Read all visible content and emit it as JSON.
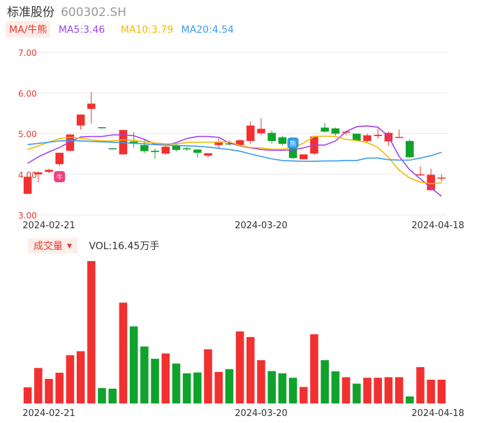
{
  "header": {
    "name": "标准股份",
    "code": "600302.SH"
  },
  "indicators": {
    "tag": "MA/牛熊",
    "ma5": "MA5:3.46",
    "ma10": "MA10:3.79",
    "ma20": "MA20:4.54"
  },
  "volume_panel": {
    "tag": "成交量",
    "label": "VOL:16.45万手"
  },
  "colors": {
    "up": "#f23030",
    "down": "#0fa32b",
    "ma5": "#a043e8",
    "ma10": "#f5b800",
    "ma20": "#3d9be8",
    "grid": "#e8e8e8",
    "axis_text": "#e8382d",
    "date_text": "#333333"
  },
  "chart_data": [
    {
      "type": "candlestick",
      "title": "",
      "ylim": [
        3.0,
        7.0
      ],
      "y_ticks": [
        "7.00",
        "6.00",
        "5.00",
        "4.00",
        "3.00"
      ],
      "x_ticks": [
        "2024-02-21",
        "2024-03-20",
        "2024-04-18"
      ],
      "grid": true,
      "markers": [
        {
          "label": "牛",
          "meaning": "bull marker",
          "index": 3
        },
        {
          "label": "熊",
          "meaning": "bear marker",
          "index": 25
        }
      ],
      "candles": [
        {
          "date": "2024-02-19",
          "open": 3.52,
          "high": 3.94,
          "low": 3.52,
          "close": 3.94
        },
        {
          "date": "2024-02-20",
          "open": 4.0,
          "high": 4.07,
          "low": 3.8,
          "close": 4.05
        },
        {
          "date": "2024-02-21",
          "open": 4.06,
          "high": 4.14,
          "low": 4.03,
          "close": 4.11
        },
        {
          "date": "2024-02-22",
          "open": 4.25,
          "high": 4.53,
          "low": 4.2,
          "close": 4.53
        },
        {
          "date": "2024-02-23",
          "open": 4.58,
          "high": 4.98,
          "low": 4.56,
          "close": 4.98
        },
        {
          "date": "2024-02-26",
          "open": 5.2,
          "high": 5.47,
          "low": 5.1,
          "close": 5.47
        },
        {
          "date": "2024-02-27",
          "open": 5.61,
          "high": 6.02,
          "low": 5.25,
          "close": 5.74
        },
        {
          "date": "2024-02-28",
          "open": 5.16,
          "high": 5.16,
          "low": 5.12,
          "close": 5.14
        },
        {
          "date": "2024-02-29",
          "open": 4.64,
          "high": 4.64,
          "low": 4.62,
          "close": 4.63
        },
        {
          "date": "2024-03-01",
          "open": 4.49,
          "high": 5.1,
          "low": 4.48,
          "close": 5.09
        },
        {
          "date": "2024-03-04",
          "open": 4.81,
          "high": 5.04,
          "low": 4.66,
          "close": 4.77
        },
        {
          "date": "2024-03-05",
          "open": 4.72,
          "high": 4.85,
          "low": 4.52,
          "close": 4.57
        },
        {
          "date": "2024-03-06",
          "open": 4.58,
          "high": 4.63,
          "low": 4.38,
          "close": 4.55
        },
        {
          "date": "2024-03-07",
          "open": 4.51,
          "high": 4.7,
          "low": 4.48,
          "close": 4.68
        },
        {
          "date": "2024-03-08",
          "open": 4.7,
          "high": 4.74,
          "low": 4.56,
          "close": 4.6
        },
        {
          "date": "2024-03-11",
          "open": 4.64,
          "high": 4.67,
          "low": 4.58,
          "close": 4.62
        },
        {
          "date": "2024-03-12",
          "open": 4.61,
          "high": 4.61,
          "low": 4.41,
          "close": 4.53
        },
        {
          "date": "2024-03-13",
          "open": 4.46,
          "high": 4.52,
          "low": 4.41,
          "close": 4.52
        },
        {
          "date": "2024-03-14",
          "open": 4.72,
          "high": 4.88,
          "low": 4.62,
          "close": 4.79
        },
        {
          "date": "2024-03-15",
          "open": 4.76,
          "high": 4.83,
          "low": 4.71,
          "close": 4.75
        },
        {
          "date": "2024-03-18",
          "open": 4.72,
          "high": 4.86,
          "low": 4.7,
          "close": 4.84
        },
        {
          "date": "2024-03-19",
          "open": 4.82,
          "high": 5.3,
          "low": 4.74,
          "close": 5.2
        },
        {
          "date": "2024-03-20",
          "open": 5.01,
          "high": 5.38,
          "low": 4.96,
          "close": 5.12
        },
        {
          "date": "2024-03-21",
          "open": 5.02,
          "high": 5.07,
          "low": 4.76,
          "close": 4.82
        },
        {
          "date": "2024-03-22",
          "open": 4.91,
          "high": 4.95,
          "low": 4.71,
          "close": 4.75
        },
        {
          "date": "2024-03-25",
          "open": 4.68,
          "high": 4.7,
          "low": 4.38,
          "close": 4.4
        },
        {
          "date": "2024-03-26",
          "open": 4.37,
          "high": 4.49,
          "low": 4.37,
          "close": 4.49
        },
        {
          "date": "2024-03-27",
          "open": 4.51,
          "high": 4.96,
          "low": 4.48,
          "close": 4.93
        },
        {
          "date": "2024-03-28",
          "open": 5.15,
          "high": 5.26,
          "low": 5.03,
          "close": 5.05
        },
        {
          "date": "2024-03-29",
          "open": 5.13,
          "high": 5.15,
          "low": 4.95,
          "close": 5.0
        },
        {
          "date": "2024-04-01",
          "open": 5.05,
          "high": 5.07,
          "low": 4.96,
          "close": 5.05
        },
        {
          "date": "2024-04-02",
          "open": 5.0,
          "high": 5.0,
          "low": 4.82,
          "close": 4.83
        },
        {
          "date": "2024-04-03",
          "open": 4.82,
          "high": 5.0,
          "low": 4.79,
          "close": 4.96
        },
        {
          "date": "2024-04-08",
          "open": 4.94,
          "high": 5.13,
          "low": 4.87,
          "close": 4.97
        },
        {
          "date": "2024-04-09",
          "open": 4.81,
          "high": 5.05,
          "low": 4.7,
          "close": 5.02
        },
        {
          "date": "2024-04-10",
          "open": 4.92,
          "high": 5.1,
          "low": 4.92,
          "close": 4.92
        },
        {
          "date": "2024-04-11",
          "open": 4.82,
          "high": 4.86,
          "low": 4.4,
          "close": 4.42
        },
        {
          "date": "2024-04-12",
          "open": 4.0,
          "high": 4.2,
          "low": 3.96,
          "close": 4.0
        },
        {
          "date": "2024-04-15",
          "open": 3.61,
          "high": 4.14,
          "low": 3.6,
          "close": 3.99
        },
        {
          "date": "2024-04-16",
          "open": 3.92,
          "high": 4.0,
          "low": 3.82,
          "close": 3.92
        }
      ],
      "series": [
        {
          "name": "MA5",
          "values": [
            4.27,
            4.43,
            4.55,
            4.66,
            4.8,
            4.92,
            4.93,
            4.93,
            4.97,
            4.97,
            4.95,
            4.86,
            4.74,
            4.72,
            4.78,
            4.88,
            4.93,
            4.93,
            4.91,
            4.77,
            4.7,
            4.65,
            4.61,
            4.59,
            4.59,
            4.6,
            4.65,
            4.72,
            4.72,
            4.82,
            5.05,
            5.17,
            5.19,
            5.16,
            4.93,
            4.44,
            4.11,
            3.89,
            3.67,
            3.46
          ]
        },
        {
          "name": "MA10",
          "values": [
            4.61,
            4.7,
            4.79,
            4.88,
            4.91,
            4.89,
            4.85,
            4.82,
            4.82,
            4.85,
            4.84,
            4.8,
            4.77,
            4.75,
            4.75,
            4.78,
            4.79,
            4.79,
            4.79,
            4.8,
            4.71,
            4.66,
            4.65,
            4.62,
            4.62,
            4.66,
            4.77,
            4.93,
            4.94,
            4.93,
            4.86,
            4.83,
            4.78,
            4.66,
            4.42,
            4.1,
            3.91,
            3.81,
            3.77,
            3.79
          ]
        },
        {
          "name": "MA20",
          "values": [
            4.73,
            4.76,
            4.79,
            4.82,
            4.83,
            4.82,
            4.81,
            4.8,
            4.79,
            4.78,
            4.76,
            4.75,
            4.73,
            4.72,
            4.71,
            4.7,
            4.69,
            4.67,
            4.64,
            4.61,
            4.57,
            4.5,
            4.44,
            4.38,
            4.34,
            4.33,
            4.32,
            4.32,
            4.33,
            4.33,
            4.34,
            4.34,
            4.4,
            4.4,
            4.36,
            4.35,
            4.35,
            4.4,
            4.46,
            4.54
          ]
        }
      ]
    },
    {
      "type": "bar",
      "title": "Volume",
      "ylabel": "",
      "x_ticks": [
        "2024-02-21",
        "2024-03-20",
        "2024-04-18"
      ],
      "colors_by_direction": true,
      "values": [
        5.8,
        12.7,
        8.8,
        11.0,
        17.3,
        18.7,
        51.0,
        5.5,
        5.3,
        36.1,
        27.6,
        20.4,
        16.0,
        17.9,
        14.3,
        10.8,
        11.1,
        19.4,
        11.3,
        12.3,
        25.8,
        23.8,
        15.5,
        11.6,
        10.8,
        9.2,
        5.9,
        24.8,
        15.5,
        11.5,
        9.4,
        7.1,
        9.2,
        9.2,
        9.4,
        9.4,
        2.5,
        13.0,
        8.5,
        8.5
      ]
    }
  ]
}
